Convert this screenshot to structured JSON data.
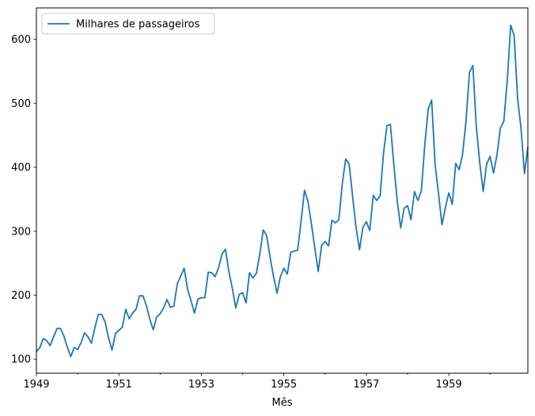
{
  "chart_data": {
    "type": "line",
    "xlabel": "Mês",
    "ylabel": "",
    "title": "",
    "grid": false,
    "legend_position": "top-left",
    "x_range": [
      "1949-01",
      "1960-12"
    ],
    "ylim": [
      78,
      649
    ],
    "x_ticks": [
      "1949",
      "1951",
      "1953",
      "1955",
      "1957",
      "1959"
    ],
    "y_ticks": [
      100,
      200,
      300,
      400,
      500,
      600
    ],
    "line_color": "#1f77b4",
    "series": [
      {
        "name": "Milhares de passageiros",
        "start": "1949-01",
        "frequency": "monthly",
        "values": [
          112,
          118,
          132,
          129,
          121,
          135,
          148,
          148,
          136,
          119,
          104,
          118,
          115,
          126,
          141,
          135,
          125,
          149,
          170,
          170,
          158,
          133,
          114,
          140,
          145,
          150,
          178,
          163,
          172,
          178,
          199,
          199,
          184,
          162,
          146,
          166,
          171,
          180,
          193,
          181,
          183,
          218,
          230,
          242,
          209,
          191,
          172,
          194,
          196,
          196,
          236,
          235,
          229,
          243,
          264,
          272,
          237,
          211,
          180,
          201,
          204,
          188,
          235,
          227,
          234,
          264,
          302,
          293,
          259,
          229,
          203,
          229,
          242,
          233,
          267,
          269,
          270,
          315,
          364,
          347,
          312,
          274,
          237,
          278,
          284,
          277,
          317,
          313,
          318,
          374,
          413,
          405,
          355,
          306,
          271,
          306,
          315,
          301,
          356,
          348,
          355,
          422,
          465,
          467,
          404,
          347,
          305,
          336,
          340,
          318,
          362,
          348,
          363,
          435,
          491,
          505,
          404,
          359,
          310,
          337,
          360,
          342,
          406,
          396,
          420,
          472,
          548,
          559,
          463,
          407,
          362,
          405,
          417,
          391,
          419,
          461,
          472,
          535,
          622,
          606,
          508,
          461,
          390,
          432
        ]
      }
    ]
  }
}
